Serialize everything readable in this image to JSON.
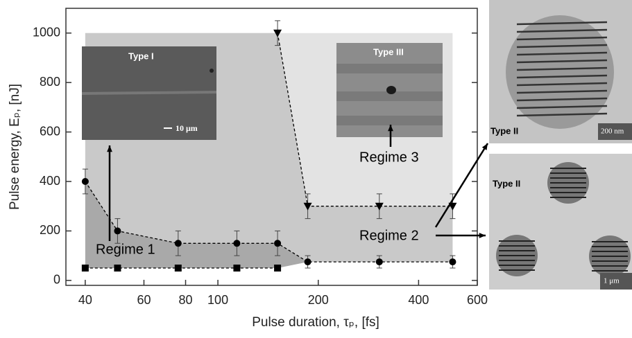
{
  "chart_data": {
    "type": "scatter",
    "xlabel": "Pulse duration, τₚ, [fs]",
    "ylabel": "Pulse energy, Eₚ, [nJ]",
    "xscale": "log",
    "xlim": [
      35,
      600
    ],
    "ylim": [
      -20,
      1100
    ],
    "xticks": [
      40,
      60,
      80,
      100,
      200,
      400,
      600
    ],
    "yticks": [
      0,
      200,
      400,
      600,
      800,
      1000
    ],
    "series": [
      {
        "marker": "circle",
        "color": "#000000",
        "x": [
          40,
          50,
          76,
          114,
          151,
          186,
          305,
          506
        ],
        "values": [
          400,
          200,
          150,
          150,
          150,
          75,
          75,
          75
        ],
        "errors": [
          50,
          50,
          50,
          50,
          50,
          25,
          25,
          25
        ]
      },
      {
        "marker": "square",
        "color": "#000000",
        "x": [
          40,
          50,
          76,
          114,
          151
        ],
        "values": [
          50,
          50,
          50,
          50,
          50
        ]
      },
      {
        "marker": "triangle",
        "color": "#000000",
        "x": [
          151,
          186,
          305,
          506
        ],
        "values": [
          1000,
          300,
          300,
          300
        ],
        "errors": [
          50,
          50,
          50,
          50
        ]
      }
    ],
    "annotations": [
      "Regime 1",
      "Regime 2",
      "Regime 3"
    ],
    "insets": [
      {
        "label": "Type I",
        "scale": "10 μm"
      },
      {
        "label": "Type III"
      },
      {
        "label": "Type II",
        "scale": "200 nm"
      },
      {
        "label": "Type II",
        "scale": "1 μm"
      }
    ]
  }
}
